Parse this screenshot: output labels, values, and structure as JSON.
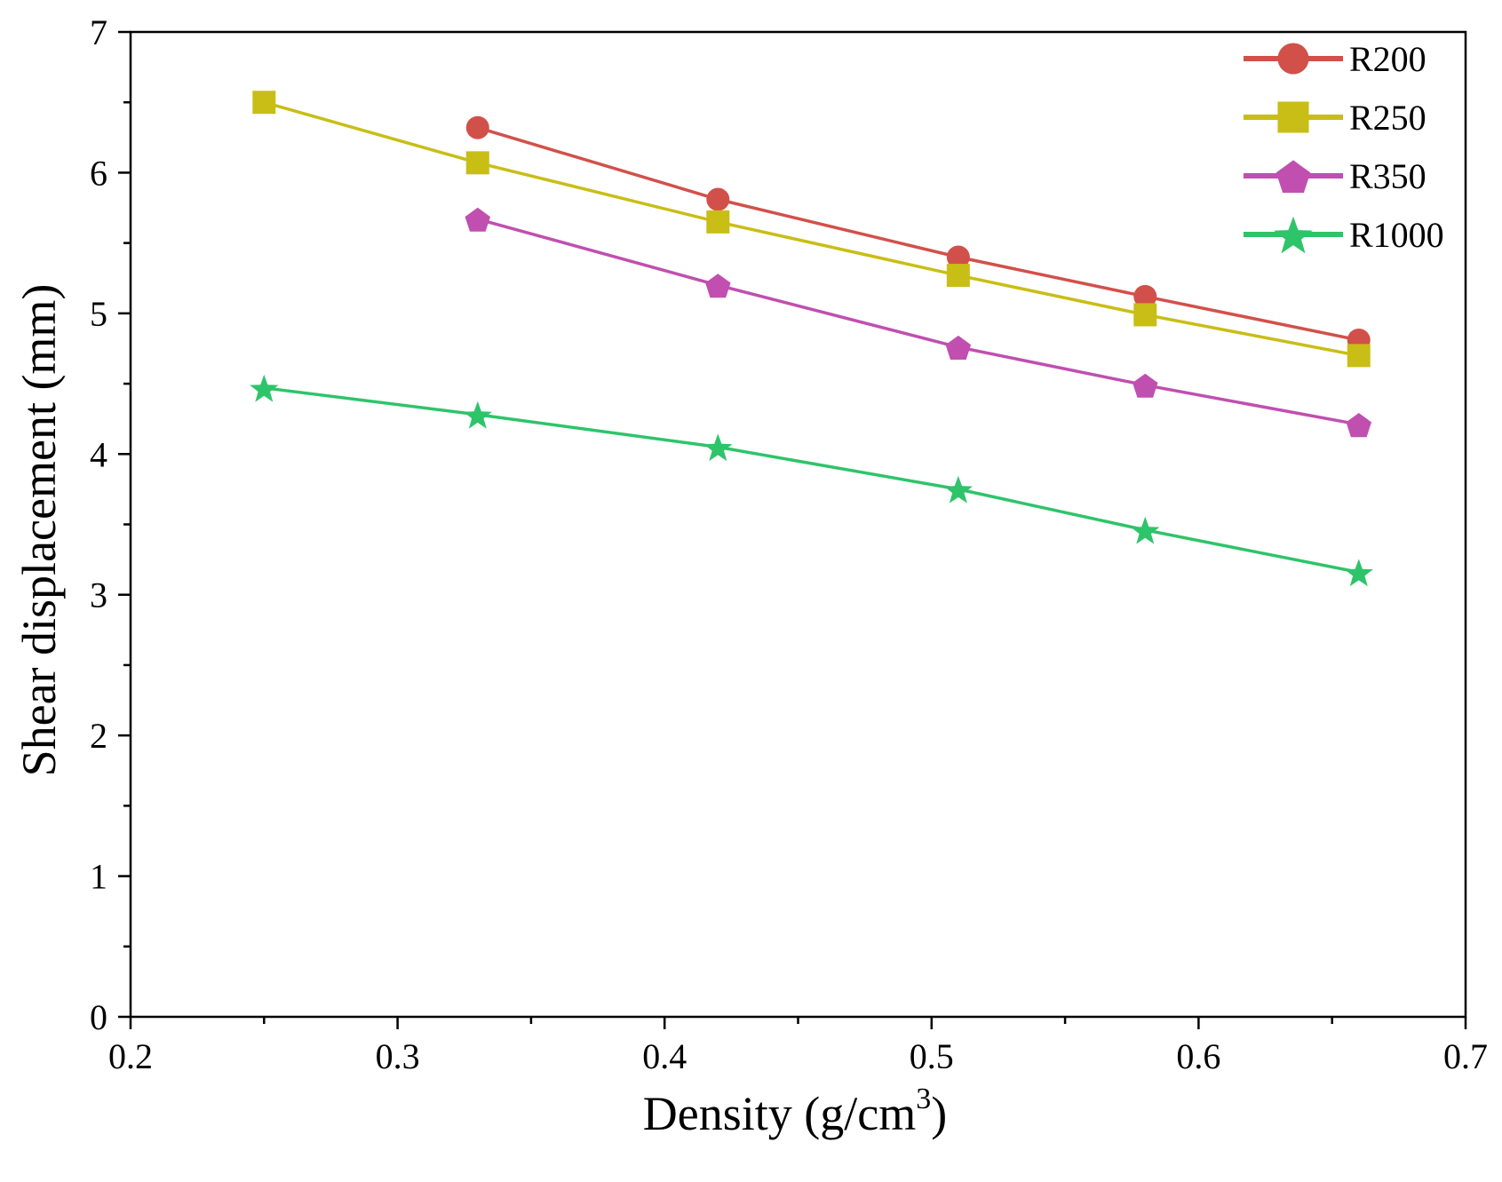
{
  "chart_data": {
    "type": "line",
    "title": "",
    "xlabel": "Density (g/cm",
    "xlabel_sup": "3",
    "xlabel_end": ")",
    "ylabel": "Shear displacement (mm)",
    "xlim": [
      0.2,
      0.7
    ],
    "ylim": [
      0,
      7
    ],
    "xticks": [
      0.2,
      0.3,
      0.4,
      0.5,
      0.6,
      0.7
    ],
    "xtick_labels": [
      "0.2",
      "0.3",
      "0.4",
      "0.5",
      "0.6",
      "0.7"
    ],
    "yticks": [
      0,
      1,
      2,
      3,
      4,
      5,
      6,
      7
    ],
    "ytick_labels": [
      "0",
      "1",
      "2",
      "3",
      "4",
      "5",
      "6",
      "7"
    ],
    "grid": false,
    "legend_position": "top-right",
    "series": [
      {
        "name": "R200",
        "color": "#d2504a",
        "marker": "circle",
        "x": [
          0.33,
          0.42,
          0.51,
          0.58,
          0.66
        ],
        "y": [
          6.32,
          5.81,
          5.4,
          5.12,
          4.81
        ]
      },
      {
        "name": "R250",
        "color": "#c8be16",
        "marker": "square",
        "x": [
          0.25,
          0.33,
          0.42,
          0.51,
          0.58,
          0.66
        ],
        "y": [
          6.5,
          6.07,
          5.65,
          5.27,
          4.99,
          4.7
        ]
      },
      {
        "name": "R350",
        "color": "#c04fb0",
        "marker": "pentagon",
        "x": [
          0.33,
          0.42,
          0.51,
          0.58,
          0.66
        ],
        "y": [
          5.67,
          5.2,
          4.76,
          4.49,
          4.21
        ]
      },
      {
        "name": "R1000",
        "color": "#2ec46a",
        "marker": "star",
        "x": [
          0.25,
          0.33,
          0.42,
          0.51,
          0.58,
          0.66
        ],
        "y": [
          4.47,
          4.28,
          4.05,
          3.75,
          3.46,
          3.16
        ]
      }
    ]
  }
}
